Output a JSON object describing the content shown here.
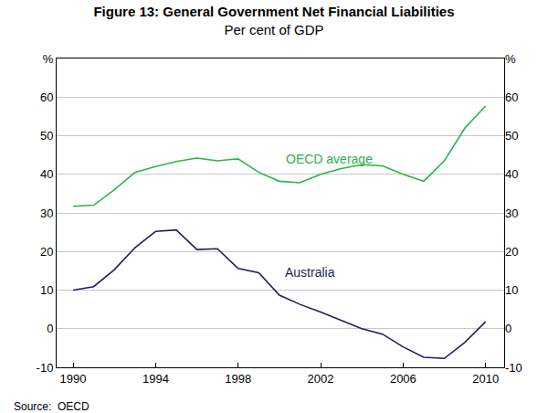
{
  "chart_data": {
    "type": "line",
    "title": "Figure 13: General Government Net Financial Liabilities",
    "subtitle": "Per cent of GDP",
    "x": [
      1990,
      1991,
      1992,
      1993,
      1994,
      1995,
      1996,
      1997,
      1998,
      1999,
      2000,
      2001,
      2002,
      2003,
      2004,
      2005,
      2006,
      2007,
      2008,
      2009,
      2010
    ],
    "series": [
      {
        "name": "OECD average",
        "color": "#2eb24a",
        "values": [
          31.7,
          32.0,
          36.0,
          40.5,
          42.0,
          43.3,
          44.2,
          43.5,
          44.0,
          40.5,
          38.2,
          37.8,
          40.0,
          41.5,
          42.5,
          42.2,
          40.0,
          38.2,
          43.5,
          52.0,
          57.7
        ]
      },
      {
        "name": "Australia",
        "color": "#1f1f5c",
        "values": [
          10.0,
          10.9,
          15.3,
          21.0,
          25.2,
          25.6,
          20.5,
          20.7,
          15.6,
          14.5,
          8.7,
          6.3,
          4.3,
          2.1,
          0.0,
          -1.4,
          -4.7,
          -7.4,
          -7.7,
          -3.5,
          1.8
        ]
      }
    ],
    "xlim": [
      1989.2,
      2010.9
    ],
    "xticks": [
      1990,
      1994,
      1998,
      2002,
      2006,
      2010
    ],
    "ylim": [
      -10,
      70
    ],
    "yticks": [
      -10,
      0,
      10,
      20,
      30,
      40,
      50,
      60,
      {
        "value": 70,
        "label": "%"
      }
    ],
    "y2lim": [
      -10,
      70
    ],
    "y2ticks": [
      -10,
      0,
      10,
      20,
      30,
      40,
      50,
      60,
      {
        "value": 70,
        "label": "%"
      }
    ],
    "grid": true,
    "annotations": [
      {
        "text": "OECD average",
        "x": 2002.4,
        "y": 44
      },
      {
        "text": "Australia",
        "x": 2001.5,
        "y": 14.5
      },
      {
        "text": "Source:  OECD"
      }
    ]
  }
}
